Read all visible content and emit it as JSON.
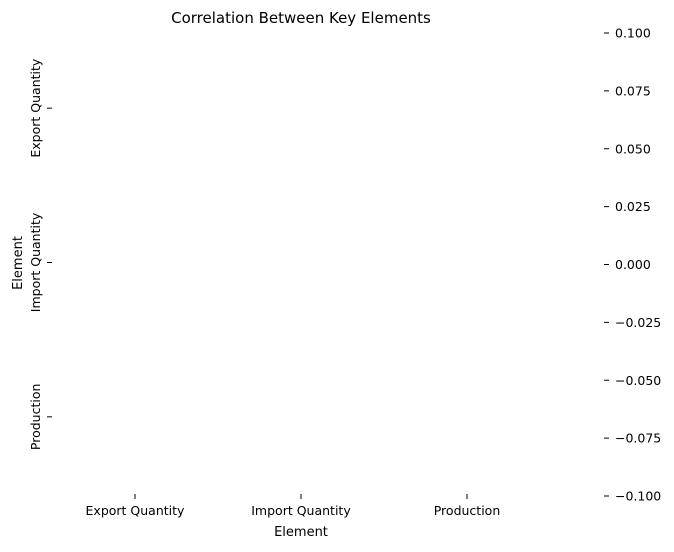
{
  "chart_data": {
    "type": "heatmap",
    "title": "Correlation Between Key Elements",
    "xlabel": "Element",
    "ylabel": "Element",
    "x_categories": [
      "Export Quantity",
      "Import Quantity",
      "Production"
    ],
    "y_categories": [
      "Export Quantity",
      "Import Quantity",
      "Production"
    ],
    "values": [],
    "colorbar": {
      "ticks": [
        "0.100",
        "0.075",
        "0.050",
        "0.025",
        "0.000",
        "−0.025",
        "−0.050",
        "−0.075",
        "−0.100"
      ],
      "range": [
        -0.1,
        0.1
      ]
    },
    "grid": false
  }
}
